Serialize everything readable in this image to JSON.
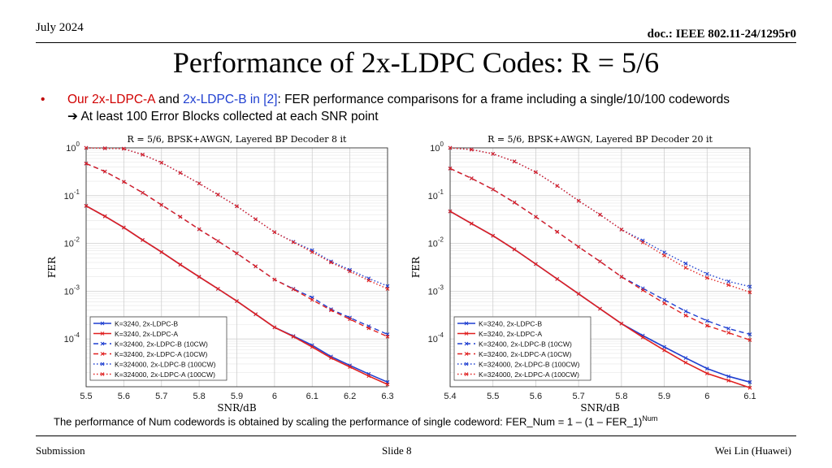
{
  "header": {
    "date": "July 2024",
    "doc": "doc.: IEEE 802.11-24/1295r0"
  },
  "title": "Performance of 2x-LDPC Codes: R = 5/6",
  "bullet": {
    "marker": "•",
    "part1": "Our 2x-LDPC-A",
    "part2": " and ",
    "part3": "2x-LDPC-B in [2]",
    "part4": ": FER performance comparisons for a frame including a single/10/100 codewords",
    "line2": "➔ At least 100 Error Blocks collected at each SNR point"
  },
  "note": {
    "text": "The performance of Num codewords is obtained by scaling the performance of single codeword: FER_Num = 1 – (1 – FER_1)",
    "sup": "Num"
  },
  "footer": {
    "left": "Submission",
    "center": "Slide 8",
    "right": "Wei Lin (Huawei)"
  },
  "colors": {
    "blue": "#1f3fd0",
    "red": "#e02020"
  },
  "chart_data": [
    {
      "type": "line",
      "title": "R = 5/6, BPSK+AWGN, Layered BP Decoder 8 it",
      "xlabel": "SNR/dB",
      "ylabel": "FER",
      "xlim": [
        5.5,
        6.3
      ],
      "ylim": [
        1e-05,
        1
      ],
      "yscale": "log",
      "xticks": [
        "5.5",
        "5.6",
        "5.7",
        "5.8",
        "5.9",
        "6",
        "6.1",
        "6.2",
        "6.3"
      ],
      "grid": true,
      "legend": "bottom-left",
      "x": [
        5.5,
        5.55,
        5.6,
        5.65,
        5.7,
        5.75,
        5.8,
        5.85,
        5.9,
        5.95,
        6.0,
        6.05,
        6.1,
        6.15,
        6.2,
        6.25,
        6.3
      ],
      "series": [
        {
          "name": "K=3240, 2x-LDPC-B",
          "color": "#1f3fd0",
          "dash": "solid",
          "values": [
            0.061,
            0.037,
            0.0215,
            0.0118,
            0.0066,
            0.0036,
            0.002,
            0.00112,
            0.00062,
            0.00033,
            0.000175,
            0.000115,
            7.4e-05,
            4.3e-05,
            2.8e-05,
            1.85e-05,
            1.25e-05
          ]
        },
        {
          "name": "K=3240, 2x-LDPC-A",
          "color": "#e02020",
          "dash": "solid",
          "values": [
            0.061,
            0.037,
            0.0215,
            0.0118,
            0.0066,
            0.0036,
            0.002,
            0.00112,
            0.00062,
            0.00033,
            0.000175,
            0.000112,
            6.8e-05,
            4e-05,
            2.6e-05,
            1.68e-05,
            1.12e-05
          ]
        },
        {
          "name": "K=32400, 2x-LDPC-B (10CW)",
          "color": "#1f3fd0",
          "dash": "dash",
          "values": [
            0.47,
            0.32,
            0.195,
            0.115,
            0.064,
            0.036,
            0.0198,
            0.0112,
            0.0062,
            0.0033,
            0.00175,
            0.00112,
            0.00074,
            0.00042,
            0.00028,
            0.000185,
            0.000125
          ]
        },
        {
          "name": "K=32400, 2x-LDPC-A (10CW)",
          "color": "#e02020",
          "dash": "dash",
          "values": [
            0.47,
            0.32,
            0.195,
            0.115,
            0.064,
            0.036,
            0.0198,
            0.0112,
            0.0062,
            0.0033,
            0.00175,
            0.0011,
            0.00066,
            0.0004,
            0.00026,
            0.000168,
            0.000112
          ]
        },
        {
          "name": "K=324000, 2x-LDPC-B (100CW)",
          "color": "#1f3fd0",
          "dash": "dot",
          "values": [
            1.0,
            0.98,
            0.96,
            0.72,
            0.49,
            0.3,
            0.18,
            0.105,
            0.06,
            0.032,
            0.0172,
            0.0108,
            0.0072,
            0.0042,
            0.0028,
            0.00185,
            0.00128
          ]
        },
        {
          "name": "K=324000, 2x-LDPC-A (100CW)",
          "color": "#e02020",
          "dash": "dot",
          "values": [
            1.0,
            0.98,
            0.96,
            0.72,
            0.49,
            0.3,
            0.18,
            0.105,
            0.06,
            0.032,
            0.0172,
            0.0106,
            0.0066,
            0.004,
            0.0026,
            0.00168,
            0.00112
          ]
        }
      ]
    },
    {
      "type": "line",
      "title": "R = 5/6, BPSK+AWGN, Layered BP Decoder 20 it",
      "xlabel": "SNR/dB",
      "ylabel": "FER",
      "xlim": [
        5.4,
        6.1
      ],
      "ylim": [
        1e-05,
        1
      ],
      "yscale": "log",
      "xticks": [
        "5.4",
        "5.5",
        "5.6",
        "5.7",
        "5.8",
        "5.9",
        "6",
        "6.1"
      ],
      "grid": true,
      "legend": "bottom-left",
      "x": [
        5.4,
        5.45,
        5.5,
        5.55,
        5.6,
        5.65,
        5.7,
        5.75,
        5.8,
        5.85,
        5.9,
        5.95,
        6.0,
        6.05,
        6.1
      ],
      "series": [
        {
          "name": "K=3240, 2x-LDPC-B",
          "color": "#1f3fd0",
          "dash": "solid",
          "values": [
            0.047,
            0.026,
            0.0145,
            0.0075,
            0.0037,
            0.0018,
            0.00088,
            0.00043,
            0.00021,
            0.000118,
            6.8e-05,
            4e-05,
            2.4e-05,
            1.65e-05,
            1.25e-05
          ]
        },
        {
          "name": "K=3240, 2x-LDPC-A",
          "color": "#e02020",
          "dash": "solid",
          "values": [
            0.047,
            0.026,
            0.0145,
            0.0075,
            0.0037,
            0.0018,
            0.00088,
            0.00043,
            0.00021,
            0.000108,
            5.8e-05,
            3.2e-05,
            1.9e-05,
            1.35e-05,
            9.5e-06
          ]
        },
        {
          "name": "K=32400, 2x-LDPC-B (10CW)",
          "color": "#1f3fd0",
          "dash": "dash",
          "values": [
            0.37,
            0.23,
            0.135,
            0.072,
            0.036,
            0.0175,
            0.0085,
            0.0042,
            0.002,
            0.00115,
            0.00066,
            0.00038,
            0.00024,
            0.000165,
            0.000125
          ]
        },
        {
          "name": "K=32400, 2x-LDPC-A (10CW)",
          "color": "#e02020",
          "dash": "dash",
          "values": [
            0.37,
            0.23,
            0.135,
            0.072,
            0.036,
            0.0175,
            0.0085,
            0.0042,
            0.002,
            0.00105,
            0.00056,
            0.00031,
            0.00019,
            0.000135,
            9.5e-05
          ]
        },
        {
          "name": "K=324000, 2x-LDPC-B (100CW)",
          "color": "#1f3fd0",
          "dash": "dot",
          "values": [
            1.0,
            0.92,
            0.75,
            0.52,
            0.31,
            0.16,
            0.078,
            0.04,
            0.0195,
            0.0115,
            0.0065,
            0.0038,
            0.0023,
            0.0016,
            0.00125
          ]
        },
        {
          "name": "K=324000, 2x-LDPC-A (100CW)",
          "color": "#e02020",
          "dash": "dot",
          "values": [
            1.0,
            0.92,
            0.75,
            0.52,
            0.31,
            0.16,
            0.078,
            0.04,
            0.0195,
            0.0105,
            0.0056,
            0.0031,
            0.0019,
            0.00135,
            0.00095
          ]
        }
      ]
    }
  ]
}
